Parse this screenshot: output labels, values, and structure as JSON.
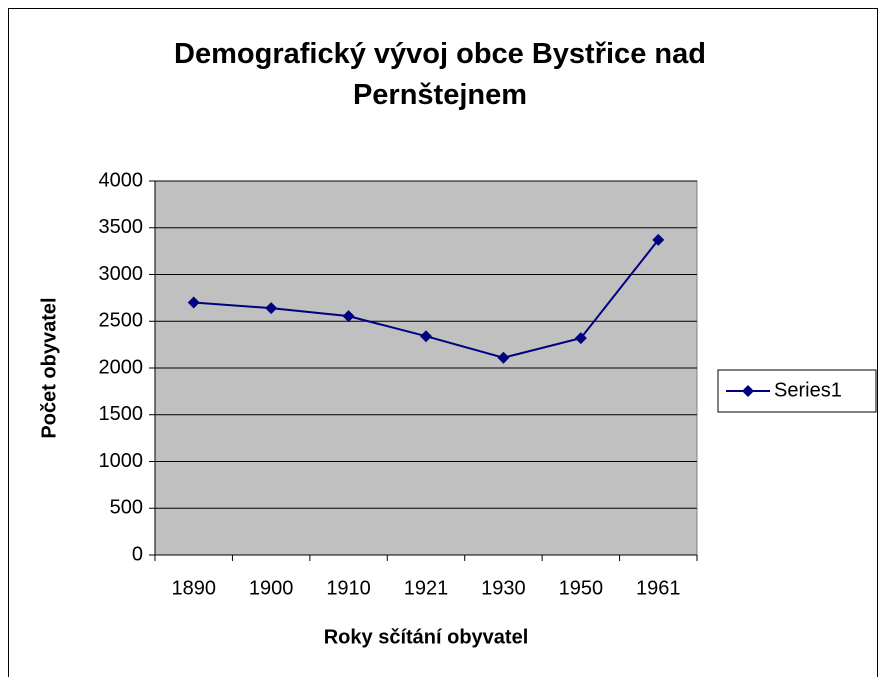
{
  "chart_data": {
    "type": "line",
    "title": "Demografický vývoj obce Bystřice nad Pernštejnem",
    "x_label": "Roky sčítání obyvatel",
    "y_label": "Počet obyvatel",
    "categories": [
      "1890",
      "1900",
      "1910",
      "1921",
      "1930",
      "1950",
      "1961"
    ],
    "series": [
      {
        "name": "Series1",
        "color": "#000080",
        "values": [
          2700,
          2640,
          2555,
          2340,
          2110,
          2320,
          3370
        ]
      }
    ],
    "ylim": [
      0,
      4000
    ],
    "yticks": [
      0,
      500,
      1000,
      1500,
      2000,
      2500,
      3000,
      3500,
      4000
    ],
    "grid": true,
    "plot_background": "#c0c0c0",
    "legend": "right"
  }
}
